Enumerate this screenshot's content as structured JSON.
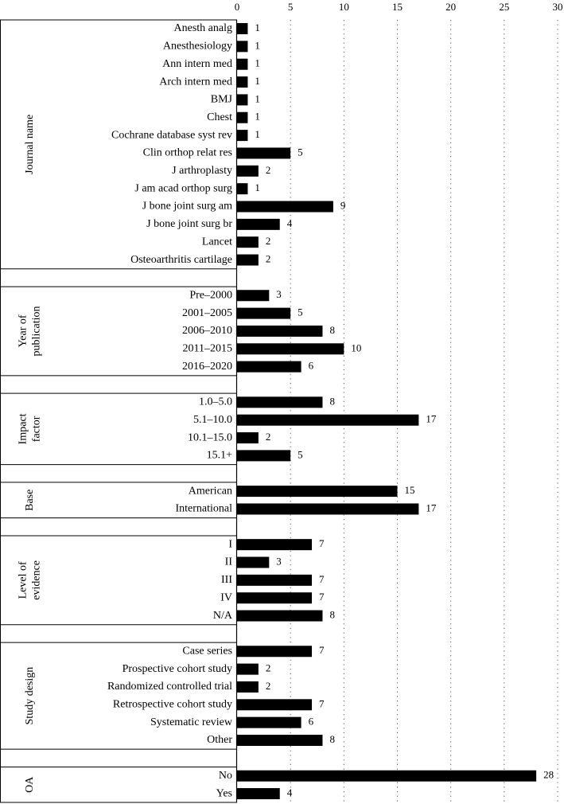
{
  "chart_data": {
    "type": "bar",
    "orientation": "horizontal",
    "xlim": [
      0,
      30
    ],
    "x_ticks": [
      "0",
      "5",
      "10",
      "15",
      "20",
      "25",
      "30"
    ],
    "tick_values": [
      0,
      5,
      10,
      15,
      20,
      25,
      30
    ],
    "grid": "vertical dotted",
    "bar_color": "#000000",
    "groups": [
      {
        "title_lines": [
          "Journal name"
        ],
        "categories": [
          "Anesth analg",
          "Anesthesiology",
          "Ann intern med",
          "Arch intern med",
          "BMJ",
          "Chest",
          "Cochrane database syst rev",
          "Clin orthop relat res",
          "J arthroplasty",
          "J am acad orthop surg",
          "J bone joint surg am",
          "J bone joint surg br",
          "Lancet",
          "Osteoarthritis cartilage"
        ],
        "values": [
          1,
          1,
          1,
          1,
          1,
          1,
          1,
          5,
          2,
          1,
          9,
          4,
          2,
          2
        ]
      },
      {
        "title_lines": [
          "Year of",
          "publication"
        ],
        "categories": [
          "Pre–2000",
          "2001–2005",
          "2006–2010",
          "2011–2015",
          "2016–2020"
        ],
        "values": [
          3,
          5,
          8,
          10,
          6
        ]
      },
      {
        "title_lines": [
          "Impact",
          "factor"
        ],
        "categories": [
          "1.0–5.0",
          "5.1–10.0",
          "10.1–15.0",
          "15.1+"
        ],
        "values": [
          8,
          17,
          2,
          5
        ]
      },
      {
        "title_lines": [
          "Base"
        ],
        "categories": [
          "American",
          "International"
        ],
        "values": [
          15,
          17
        ]
      },
      {
        "title_lines": [
          "Level of",
          "evidence"
        ],
        "categories": [
          "I",
          "II",
          "III",
          "IV",
          "N/A"
        ],
        "values": [
          7,
          3,
          7,
          7,
          8
        ]
      },
      {
        "title_lines": [
          "Study design"
        ],
        "categories": [
          "Case series",
          "Prospective cohort study",
          "Randomized controlled trial",
          "Retrospective cohort study",
          "Systematic review",
          "Other"
        ],
        "values": [
          7,
          2,
          2,
          7,
          6,
          8
        ]
      },
      {
        "title_lines": [
          "OA"
        ],
        "categories": [
          "No",
          "Yes"
        ],
        "values": [
          28,
          4
        ]
      }
    ]
  }
}
